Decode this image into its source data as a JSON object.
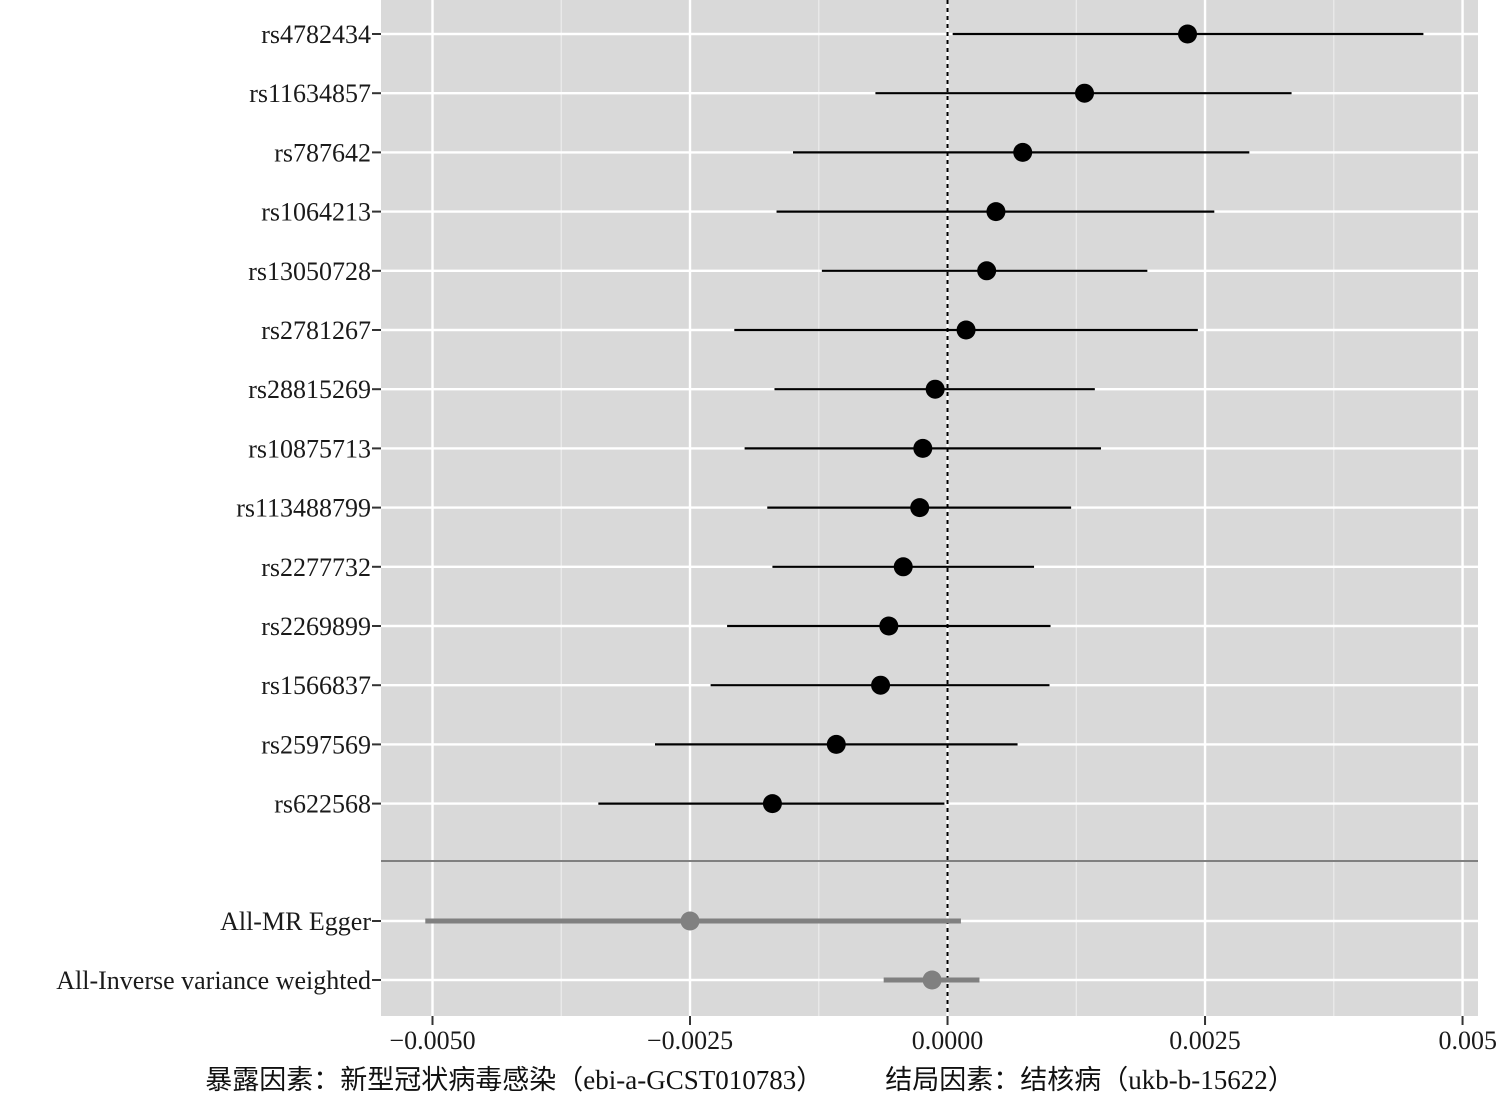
{
  "chart_data": {
    "type": "forest",
    "xlim": [
      -0.0055,
      0.00515
    ],
    "x_ticks": [
      -0.005,
      -0.0025,
      0.0,
      0.0025,
      0.005
    ],
    "x_tick_labels": [
      "−0.0050",
      "−0.0025",
      "0.0000",
      "0.0025",
      "0.005"
    ],
    "reference_line": 0,
    "grid": true,
    "panel_color": "#d9d9d9",
    "snp_color": "#000000",
    "summary_color": "#808080",
    "snps": [
      {
        "label": "rs4782434",
        "estimate": 0.00233,
        "lower": 5e-05,
        "upper": 0.00462
      },
      {
        "label": "rs11634857",
        "estimate": 0.00133,
        "lower": -0.0007,
        "upper": 0.00334
      },
      {
        "label": "rs787642",
        "estimate": 0.00073,
        "lower": -0.0015,
        "upper": 0.00293
      },
      {
        "label": "rs1064213",
        "estimate": 0.00047,
        "lower": -0.00166,
        "upper": 0.00259
      },
      {
        "label": "rs13050728",
        "estimate": 0.00038,
        "lower": -0.00122,
        "upper": 0.00194
      },
      {
        "label": "rs2781267",
        "estimate": 0.00018,
        "lower": -0.00207,
        "upper": 0.00243
      },
      {
        "label": "rs28815269",
        "estimate": -0.00012,
        "lower": -0.00168,
        "upper": 0.00143
      },
      {
        "label": "rs10875713",
        "estimate": -0.00024,
        "lower": -0.00197,
        "upper": 0.00149
      },
      {
        "label": "rs113488799",
        "estimate": -0.00027,
        "lower": -0.00175,
        "upper": 0.0012
      },
      {
        "label": "rs2277732",
        "estimate": -0.00043,
        "lower": -0.0017,
        "upper": 0.00084
      },
      {
        "label": "rs2269899",
        "estimate": -0.00057,
        "lower": -0.00214,
        "upper": 0.001
      },
      {
        "label": "rs1566837",
        "estimate": -0.00065,
        "lower": -0.0023,
        "upper": 0.00099
      },
      {
        "label": "rs2597569",
        "estimate": -0.00108,
        "lower": -0.00284,
        "upper": 0.00068
      },
      {
        "label": "rs622568",
        "estimate": -0.0017,
        "lower": -0.00339,
        "upper": -3e-05
      }
    ],
    "summaries": [
      {
        "label": "All-MR Egger",
        "estimate": -0.0025,
        "lower": -0.00507,
        "upper": 0.00013
      },
      {
        "label": "All-Inverse variance weighted",
        "estimate": -0.00015,
        "lower": -0.00062,
        "upper": 0.00031
      }
    ]
  },
  "caption": {
    "exposure": "暴露因素：新型冠状病毒感染（ebi-a-GCST010783）",
    "outcome": "结局因素：结核病（ukb-b-15622）"
  }
}
